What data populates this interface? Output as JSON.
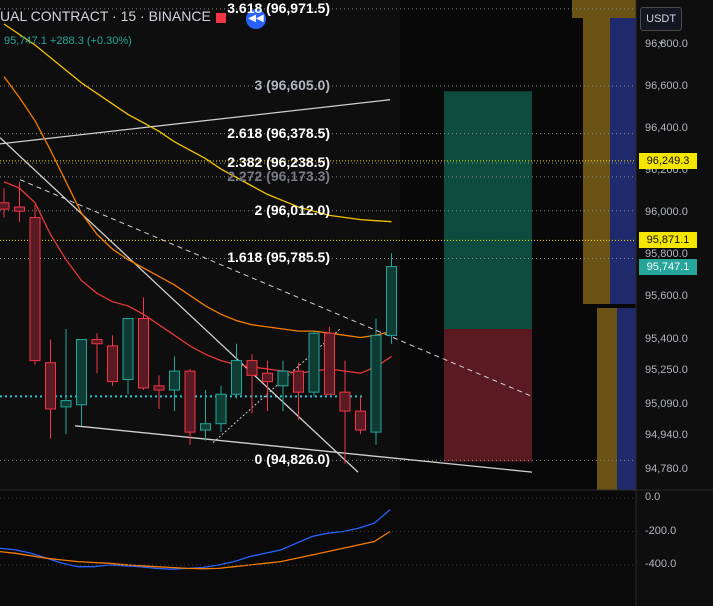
{
  "header": {
    "symbol_text": "UAL CONTRACT · 15 · BINANCE",
    "price_line": "95,747.1",
    "change": "+288.3 (+0.30%)",
    "currency": "USDT"
  },
  "colors": {
    "bg": "#0e0e0e",
    "up": "#26a69a",
    "down": "#f23645",
    "up_body": "#0f3d36",
    "down_body": "#5a1a24",
    "navy": "#1e2a6b",
    "gold": "#b8860b",
    "ma_orange": "#f57c00",
    "ma_yellow": "#f5c400",
    "ma_red": "#e53935",
    "tp_zone": "#0c4b3e",
    "sl_zone": "#5a1a22"
  },
  "price_axis": {
    "ticks": [
      96800,
      96600,
      96400,
      96200,
      96000,
      95800,
      95600,
      95400,
      95250,
      95090,
      94940,
      94780
    ],
    "tick_labels": [
      "96,800.0",
      "96,600.0",
      "96,400.0",
      "96,200.0",
      "96,000.0",
      "95,800.0",
      "95,600.0",
      "95,400.0",
      "95,250.0",
      "95,090.0",
      "94,940.0",
      "94,780.0"
    ],
    "tags": [
      {
        "label": "96,249.3",
        "price": 96249.3,
        "color": "#f5e600"
      },
      {
        "label": "95,871.1",
        "price": 95871.1,
        "color": "#f5e600"
      },
      {
        "label": "95,747.1",
        "price": 95747.1,
        "color": "#26a69a"
      }
    ]
  },
  "fib_levels": [
    {
      "label": "3.618 (96,971.5)",
      "price": 96971.5,
      "color": "#ffffff"
    },
    {
      "label": "3 (96,605.0)",
      "price": 96605.0,
      "color": "#b2b5be"
    },
    {
      "label": "2.618 (96,378.5)",
      "price": 96378.5,
      "color": "#ffffff"
    },
    {
      "label": "2.382 (96,238.5)",
      "price": 96238.5,
      "color": "#ffffff"
    },
    {
      "label": "2.272 (96,173.3)",
      "price": 96173.3,
      "color": "#787b86"
    },
    {
      "label": "2 (96,012.0)",
      "price": 96012.0,
      "color": "#ffffff"
    },
    {
      "label": "1.618 (95,785.5)",
      "price": 95785.5,
      "color": "#ffffff"
    },
    {
      "label": "0 (94,826.0)",
      "price": 94826.0,
      "color": "#ffffff"
    }
  ],
  "oscillator": {
    "tick_labels": [
      "0.0",
      "-200.0",
      "-400.0"
    ],
    "ticks": [
      0,
      -200,
      -400
    ],
    "blue": [
      -300,
      -310,
      -330,
      -360,
      -390,
      -410,
      -410,
      -400,
      -405,
      -410,
      -420,
      -425,
      -420,
      -415,
      -400,
      -380,
      -350,
      -330,
      -310,
      -270,
      -230,
      -210,
      -200,
      -180,
      -150,
      -70
    ],
    "orange": [
      -320,
      -330,
      -345,
      -360,
      -370,
      -380,
      -385,
      -390,
      -398,
      -405,
      -410,
      -415,
      -420,
      -422,
      -420,
      -410,
      -400,
      -390,
      -380,
      -360,
      -340,
      -320,
      -300,
      -280,
      -260,
      -200
    ]
  },
  "chart_data": {
    "type": "candlestick",
    "title": "UAL CONTRACT · 15 · BINANCE",
    "ylabel": "USDT",
    "ylim": [
      94700,
      97000
    ],
    "x": [
      1,
      2,
      3,
      4,
      5,
      6,
      7,
      8,
      9,
      10,
      11,
      12,
      13,
      14,
      15,
      16,
      17,
      18,
      19,
      20,
      21,
      22,
      23,
      24,
      25,
      26
    ],
    "series": [
      {
        "name": "",
        "values": [
          {
            "o": 96050,
            "h": 96120,
            "l": 95980,
            "c": 96020
          },
          {
            "o": 96030,
            "h": 96150,
            "l": 95960,
            "c": 96010
          },
          {
            "o": 95980,
            "h": 96040,
            "l": 95280,
            "c": 95300
          },
          {
            "o": 95290,
            "h": 95400,
            "l": 94930,
            "c": 95070
          },
          {
            "o": 95080,
            "h": 95450,
            "l": 94950,
            "c": 95110
          },
          {
            "o": 95090,
            "h": 95380,
            "l": 94990,
            "c": 95400
          },
          {
            "o": 95400,
            "h": 95430,
            "l": 95240,
            "c": 95380
          },
          {
            "o": 95370,
            "h": 95420,
            "l": 95180,
            "c": 95200
          },
          {
            "o": 95210,
            "h": 95500,
            "l": 95140,
            "c": 95500
          },
          {
            "o": 95500,
            "h": 95600,
            "l": 95160,
            "c": 95170
          },
          {
            "o": 95180,
            "h": 95230,
            "l": 95070,
            "c": 95160
          },
          {
            "o": 95160,
            "h": 95320,
            "l": 95060,
            "c": 95250
          },
          {
            "o": 95250,
            "h": 95260,
            "l": 94900,
            "c": 94960
          },
          {
            "o": 94970,
            "h": 95160,
            "l": 94920,
            "c": 95000
          },
          {
            "o": 95000,
            "h": 95180,
            "l": 94960,
            "c": 95140
          },
          {
            "o": 95140,
            "h": 95380,
            "l": 95120,
            "c": 95300
          },
          {
            "o": 95300,
            "h": 95330,
            "l": 95050,
            "c": 95230
          },
          {
            "o": 95240,
            "h": 95300,
            "l": 95060,
            "c": 95200
          },
          {
            "o": 95180,
            "h": 95300,
            "l": 95060,
            "c": 95250
          },
          {
            "o": 95250,
            "h": 95290,
            "l": 95020,
            "c": 95150
          },
          {
            "o": 95150,
            "h": 95440,
            "l": 95130,
            "c": 95430
          },
          {
            "o": 95430,
            "h": 95460,
            "l": 95140,
            "c": 95140
          },
          {
            "o": 95150,
            "h": 95300,
            "l": 94810,
            "c": 95060
          },
          {
            "o": 95060,
            "h": 95130,
            "l": 94950,
            "c": 94970
          },
          {
            "o": 94960,
            "h": 95500,
            "l": 94900,
            "c": 95420
          },
          {
            "o": 95420,
            "h": 95810,
            "l": 95380,
            "c": 95747
          }
        ]
      }
    ],
    "moving_averages": [
      {
        "color": "#f5c400",
        "values": [
          96900,
          96850,
          96800,
          96740,
          96680,
          96620,
          96570,
          96520,
          96470,
          96430,
          96390,
          96340,
          96300,
          96260,
          96210,
          96170,
          96130,
          96090,
          96060,
          96030,
          96010,
          95990,
          95980,
          95970,
          95965,
          95960
        ]
      },
      {
        "color": "#f57c00",
        "values": [
          96650,
          96550,
          96440,
          96300,
          96150,
          96000,
          95900,
          95830,
          95780,
          95740,
          95700,
          95660,
          95610,
          95560,
          95520,
          95490,
          95470,
          95460,
          95450,
          95440,
          95440,
          95430,
          95420,
          95410,
          95420,
          95440
        ]
      },
      {
        "color": "#e53935",
        "values": [
          96150,
          96120,
          96050,
          95900,
          95780,
          95680,
          95620,
          95580,
          95560,
          95520,
          95470,
          95420,
          95370,
          95330,
          95300,
          95280,
          95270,
          95260,
          95250,
          95240,
          95250,
          95260,
          95250,
          95240,
          95270,
          95320
        ]
      }
    ],
    "trade_zone": {
      "target": 96580,
      "entry": 95450,
      "stop": 94820
    }
  }
}
